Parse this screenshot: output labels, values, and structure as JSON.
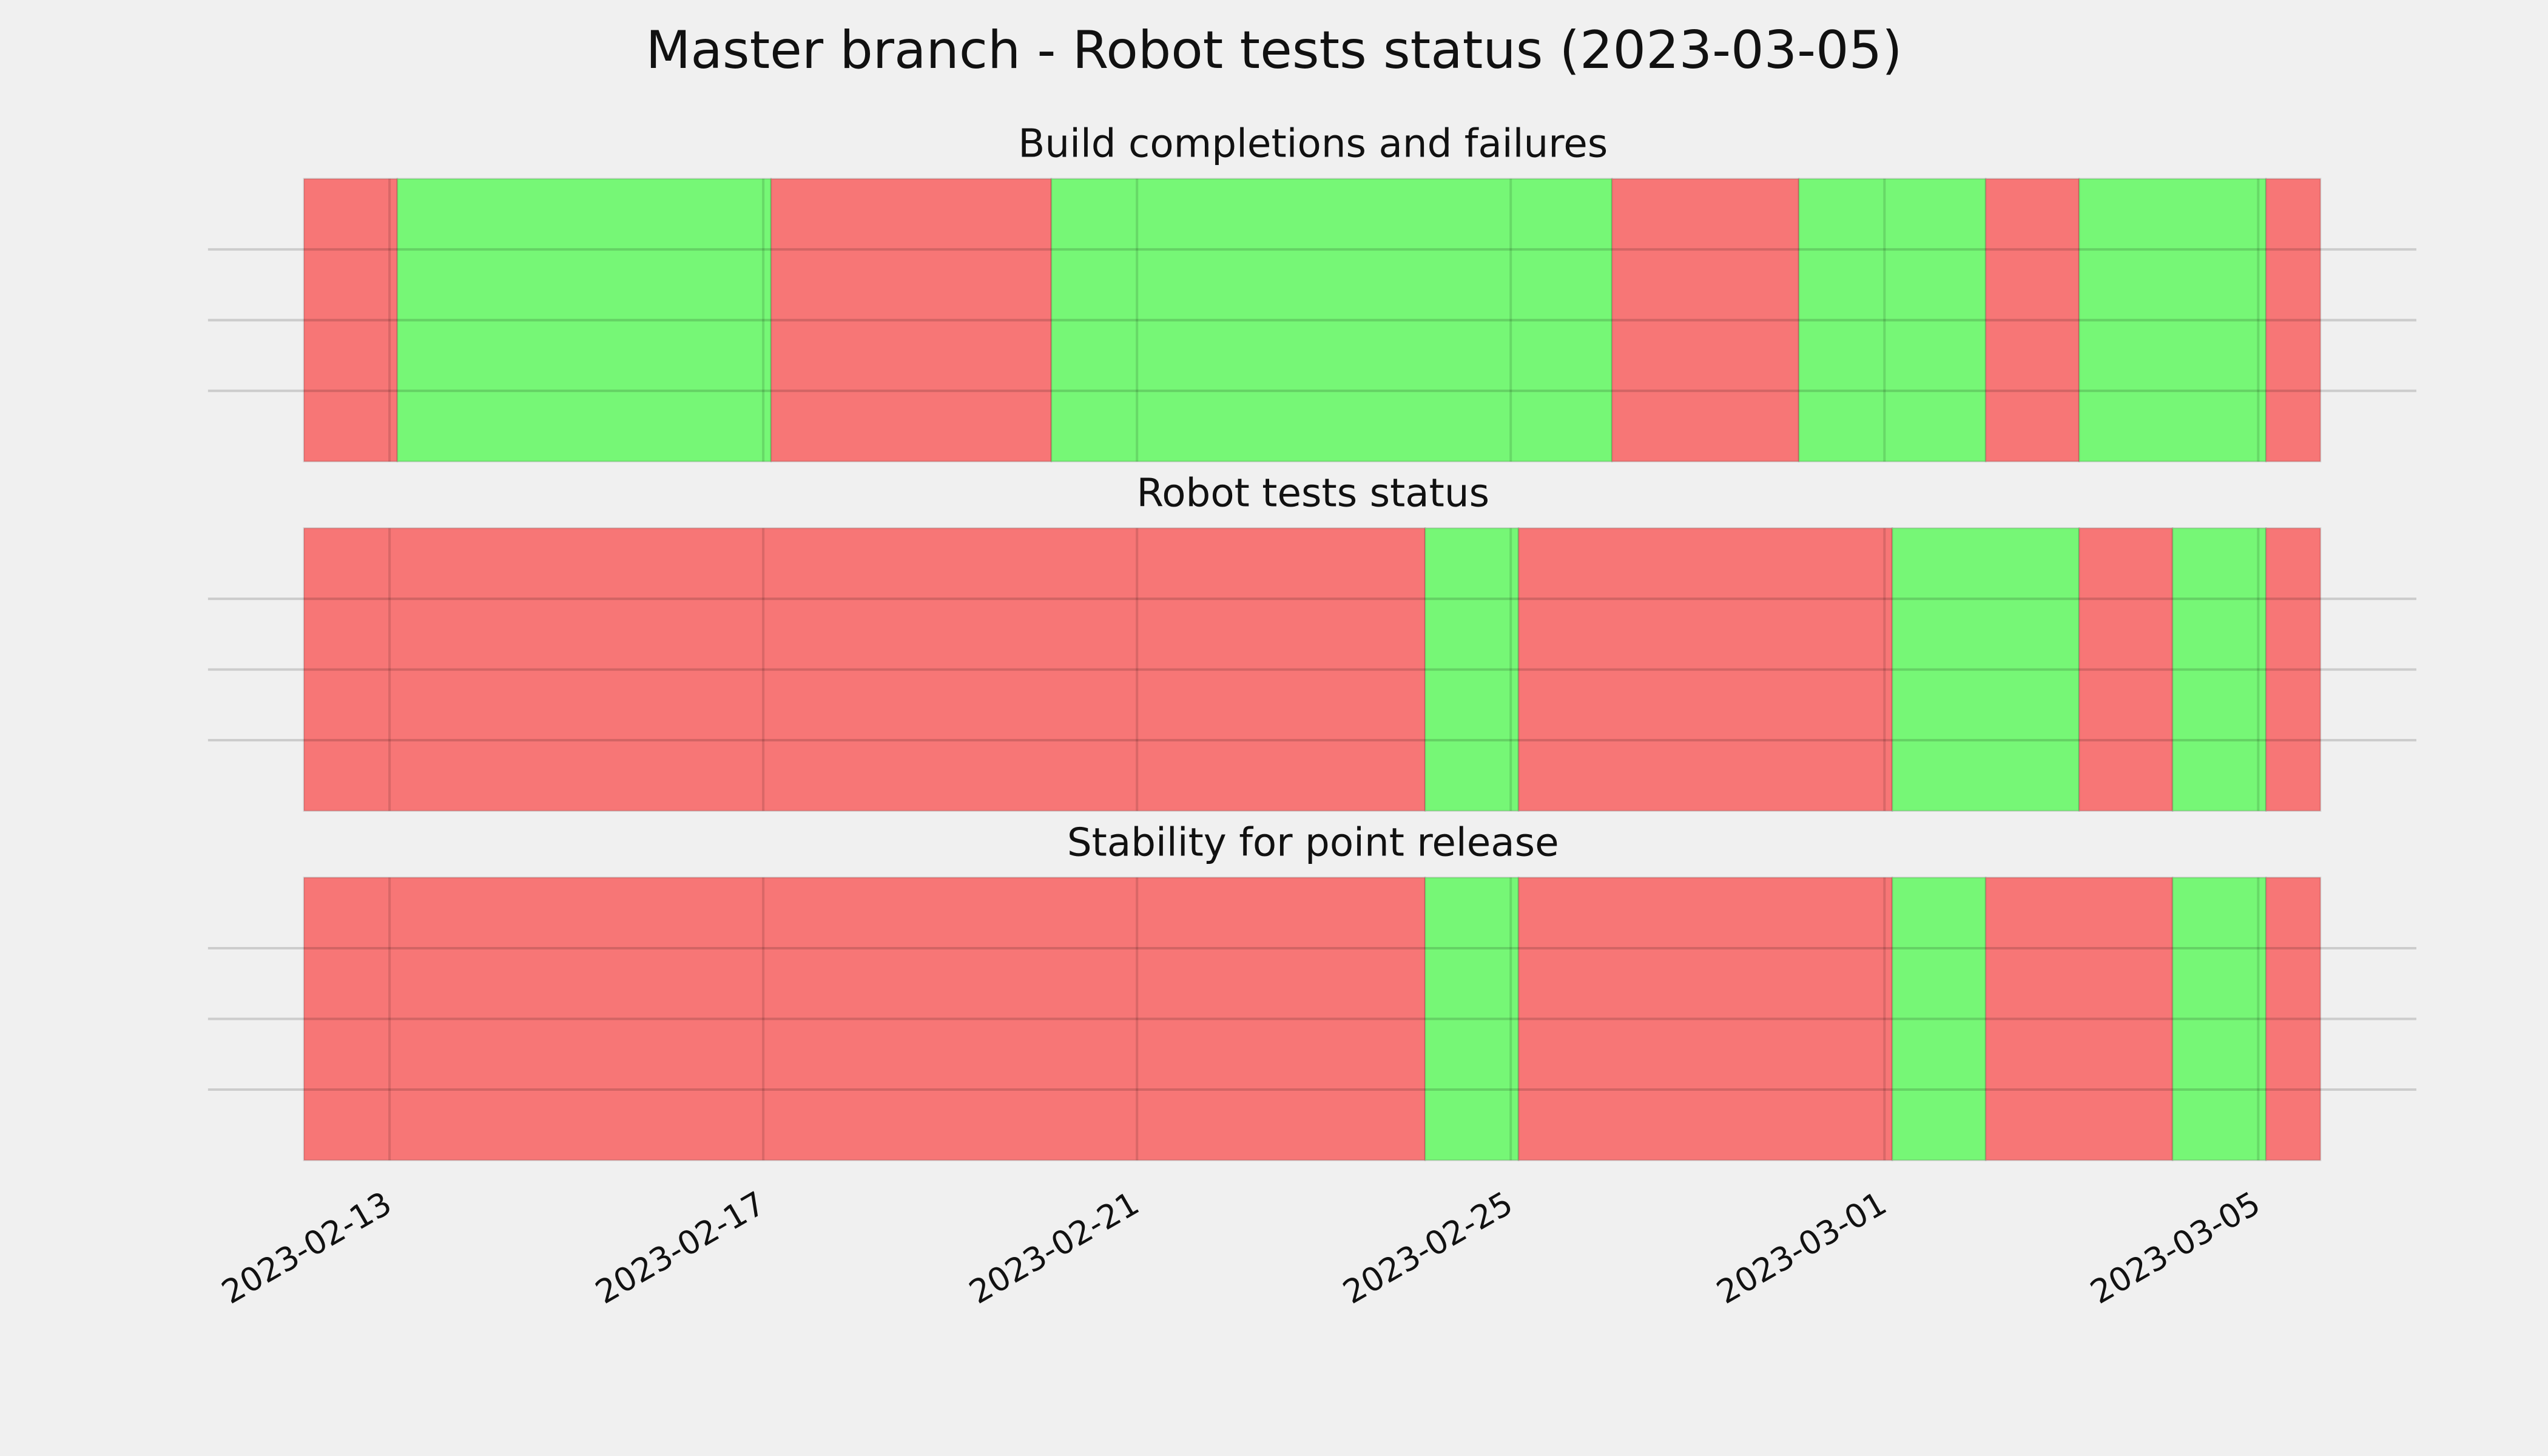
{
  "chart_data": {
    "type": "timeline",
    "title": "Master branch - Robot tests status (2023-03-05)",
    "xlim": [
      "2023-02-12T02:00",
      "2023-03-05T16:00"
    ],
    "xticks": [
      "2023-02-13",
      "2023-02-17",
      "2023-02-21",
      "2023-02-25",
      "2023-03-01",
      "2023-03-05"
    ],
    "grid": true,
    "panels": [
      {
        "subtitle": "Build completions and failures",
        "x": [
          "2023-02-12T02:00",
          "2023-02-13T02:00",
          "2023-02-17T02:00",
          "2023-02-20T02:00",
          "2023-02-26T02:00",
          "2023-02-28T02:00",
          "2023-03-02T02:00",
          "2023-03-03T02:00",
          "2023-03-05T02:00",
          "2023-03-05T16:00"
        ],
        "colors": [
          "#f77676",
          "#76f776",
          "#f77676",
          "#76f776",
          "#f77676",
          "#76f776",
          "#f77676",
          "#76f776",
          "#f77676"
        ]
      },
      {
        "subtitle": "Robot tests status",
        "x": [
          "2023-02-12T02:00",
          "2023-02-24T02:00",
          "2023-02-25T02:00",
          "2023-03-01T02:00",
          "2023-03-03T02:00",
          "2023-03-04T02:00",
          "2023-03-05T02:00",
          "2023-03-05T16:00"
        ],
        "colors": [
          "#f77676",
          "#76f776",
          "#f77676",
          "#76f776",
          "#f77676",
          "#76f776",
          "#f77676"
        ]
      },
      {
        "subtitle": "Stability for point release",
        "x": [
          "2023-02-12T02:00",
          "2023-02-24T02:00",
          "2023-02-25T02:00",
          "2023-03-01T02:00",
          "2023-03-02T02:00",
          "2023-03-04T02:00",
          "2023-03-05T02:00",
          "2023-03-05T16:00"
        ],
        "colors": [
          "#f77676",
          "#76f776",
          "#f77676",
          "#76f776",
          "#f77676",
          "#76f776",
          "#f77676"
        ]
      }
    ]
  }
}
